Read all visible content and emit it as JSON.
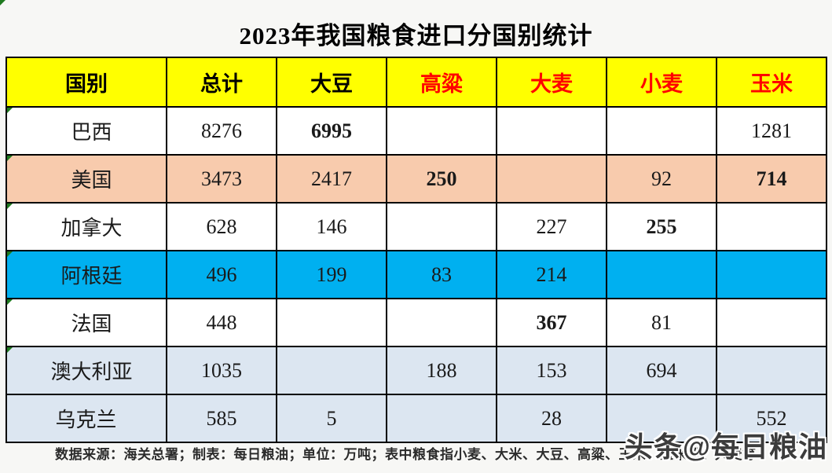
{
  "title": "2023年我国粮食进口分国别统计",
  "footer_note": "数据来源：海关总署；制表：每日粮油；单位：万吨；表中粮食指小麦、大米、大豆、高粱、玉米、玉米粉、大麦等",
  "watermark": "头条@每日粮油",
  "colors": {
    "header_bg": "#ffff00",
    "header_red_text": "#ff0000",
    "red_value_text": "#ee0f0f",
    "row_us_bg": "#f8cbad",
    "row_argentina_bg": "#00b0f0",
    "row_lightblue_bg": "#dce6f1",
    "row_white_bg": "#ffffff",
    "border": "#000000"
  },
  "chart_data": {
    "type": "table",
    "title": "2023年我国粮食进口分国别统计",
    "unit": "万吨",
    "columns": [
      {
        "label": "国别",
        "red": false
      },
      {
        "label": "总计",
        "red": false
      },
      {
        "label": "大豆",
        "red": false
      },
      {
        "label": "高粱",
        "red": true
      },
      {
        "label": "大麦",
        "red": true
      },
      {
        "label": "小麦",
        "red": true
      },
      {
        "label": "玉米",
        "red": true
      }
    ],
    "rows": [
      {
        "country": "巴西",
        "bg": "#ffffff",
        "centered": false,
        "corner": true,
        "cells": [
          {
            "v": "8276",
            "red": false
          },
          {
            "v": "6995",
            "red": true
          },
          {
            "v": "",
            "red": false
          },
          {
            "v": "",
            "red": false
          },
          {
            "v": "",
            "red": false
          },
          {
            "v": "1281",
            "red": false
          }
        ]
      },
      {
        "country": "美国",
        "bg": "#f8cbad",
        "centered": false,
        "corner": true,
        "cells": [
          {
            "v": "3473",
            "red": false
          },
          {
            "v": "2417",
            "red": false
          },
          {
            "v": "250",
            "red": true
          },
          {
            "v": "",
            "red": false
          },
          {
            "v": "92",
            "red": false
          },
          {
            "v": "714",
            "red": true
          }
        ]
      },
      {
        "country": "加拿大",
        "bg": "#ffffff",
        "centered": false,
        "corner": true,
        "cells": [
          {
            "v": "628",
            "red": false
          },
          {
            "v": "146",
            "red": false
          },
          {
            "v": "",
            "red": false
          },
          {
            "v": "227",
            "red": false
          },
          {
            "v": "255",
            "red": true
          },
          {
            "v": "",
            "red": false
          }
        ]
      },
      {
        "country": "阿根廷",
        "bg": "#00b0f0",
        "centered": false,
        "corner": true,
        "cells": [
          {
            "v": "496",
            "red": false
          },
          {
            "v": "199",
            "red": false
          },
          {
            "v": "83",
            "red": false
          },
          {
            "v": "214",
            "red": false
          },
          {
            "v": "",
            "red": false
          },
          {
            "v": "",
            "red": false
          }
        ]
      },
      {
        "country": "法国",
        "bg": "#ffffff",
        "centered": false,
        "corner": true,
        "cells": [
          {
            "v": "448",
            "red": false
          },
          {
            "v": "",
            "red": false
          },
          {
            "v": "",
            "red": false
          },
          {
            "v": "367",
            "red": true
          },
          {
            "v": "81",
            "red": false
          },
          {
            "v": "",
            "red": false
          }
        ]
      },
      {
        "country": "澳大利亚",
        "bg": "#dce6f1",
        "centered": false,
        "corner": true,
        "cells": [
          {
            "v": "1035",
            "red": false
          },
          {
            "v": "",
            "red": false
          },
          {
            "v": "188",
            "red": false
          },
          {
            "v": "153",
            "red": false
          },
          {
            "v": "694",
            "red": false
          },
          {
            "v": "",
            "red": false
          }
        ]
      },
      {
        "country": "乌克兰",
        "bg": "#dce6f1",
        "centered": true,
        "corner": false,
        "cells": [
          {
            "v": "585",
            "red": false
          },
          {
            "v": "5",
            "red": false
          },
          {
            "v": "",
            "red": false
          },
          {
            "v": "28",
            "red": false
          },
          {
            "v": "",
            "red": false
          },
          {
            "v": "552",
            "red": false
          }
        ]
      }
    ]
  }
}
